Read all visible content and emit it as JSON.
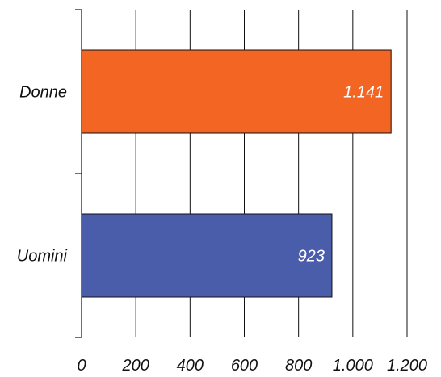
{
  "chart_data": {
    "type": "bar",
    "orientation": "horizontal",
    "categories": [
      "Donne",
      "Uomini"
    ],
    "values": [
      1141,
      923
    ],
    "data_labels": [
      "1.141",
      "923"
    ],
    "colors": [
      "#F26522",
      "#4A5DAA"
    ],
    "title": "",
    "xlabel": "",
    "ylabel": "",
    "xlim": [
      0,
      1200
    ],
    "xticks": [
      0,
      200,
      400,
      600,
      800,
      1000,
      1200
    ],
    "xtick_labels": [
      "0",
      "200",
      "400",
      "600",
      "800",
      "1.000",
      "1.200"
    ],
    "grid": "vertical",
    "legend": "none"
  }
}
